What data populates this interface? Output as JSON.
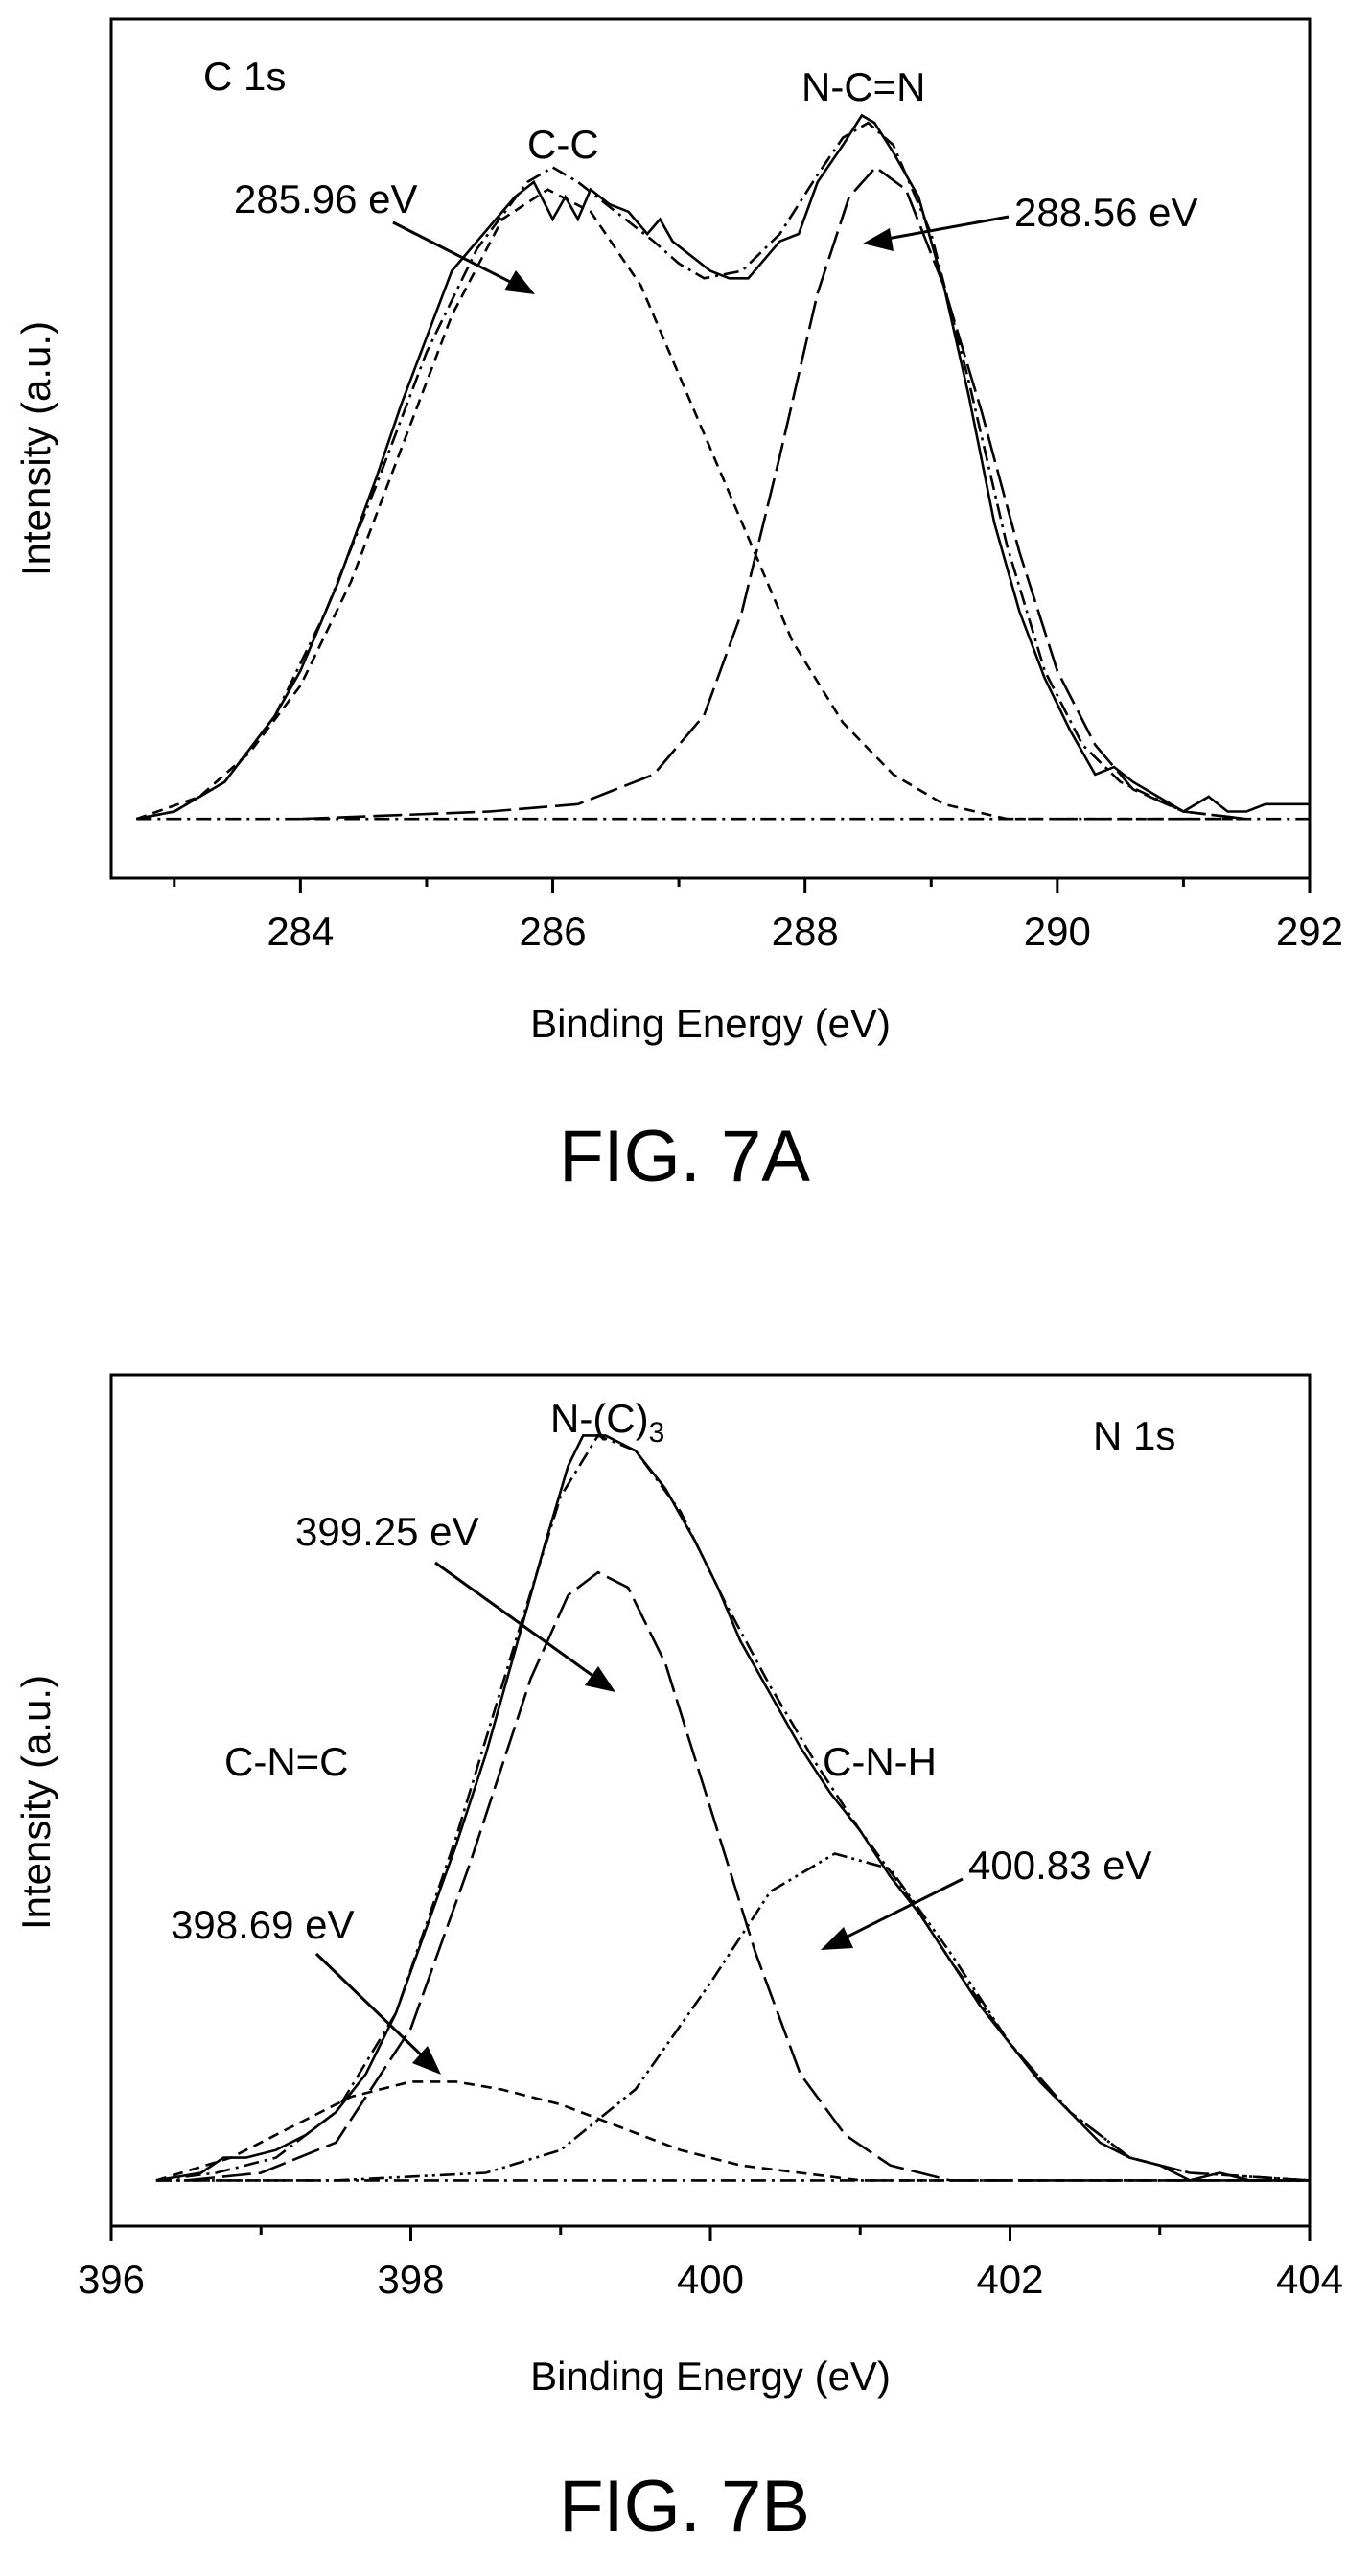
{
  "chart_data": [
    {
      "type": "line",
      "title": "C 1s",
      "xlabel": "Binding Energy (eV)",
      "ylabel": "Intensity (a.u.)",
      "figure_label": "FIG. 7A",
      "xlim": [
        282.5,
        292
      ],
      "ylim": [
        -0.08,
        1.08
      ],
      "xticks": [
        "284",
        "286",
        "288",
        "290",
        "292"
      ],
      "grid": false,
      "series": [
        {
          "style": "solid",
          "points": [
            [
              282.7,
              0.0
            ],
            [
              283.0,
              0.01
            ],
            [
              283.4,
              0.05
            ],
            [
              283.8,
              0.14
            ],
            [
              284.0,
              0.2
            ],
            [
              284.3,
              0.32
            ],
            [
              284.6,
              0.46
            ],
            [
              284.8,
              0.56
            ],
            [
              285.0,
              0.65
            ],
            [
              285.2,
              0.74
            ],
            [
              285.4,
              0.78
            ],
            [
              285.55,
              0.81
            ],
            [
              285.7,
              0.84
            ],
            [
              285.85,
              0.86
            ],
            [
              286.0,
              0.81
            ],
            [
              286.1,
              0.84
            ],
            [
              286.2,
              0.81
            ],
            [
              286.3,
              0.85
            ],
            [
              286.45,
              0.83
            ],
            [
              286.6,
              0.82
            ],
            [
              286.75,
              0.79
            ],
            [
              286.85,
              0.81
            ],
            [
              286.95,
              0.78
            ],
            [
              287.1,
              0.76
            ],
            [
              287.25,
              0.74
            ],
            [
              287.4,
              0.73
            ],
            [
              287.55,
              0.73
            ],
            [
              287.7,
              0.76
            ],
            [
              287.8,
              0.78
            ],
            [
              287.95,
              0.79
            ],
            [
              288.1,
              0.86
            ],
            [
              288.3,
              0.91
            ],
            [
              288.45,
              0.95
            ],
            [
              288.55,
              0.94
            ],
            [
              288.7,
              0.9
            ],
            [
              288.9,
              0.84
            ],
            [
              289.1,
              0.72
            ],
            [
              289.3,
              0.57
            ],
            [
              289.5,
              0.4
            ],
            [
              289.7,
              0.28
            ],
            [
              289.9,
              0.19
            ],
            [
              290.1,
              0.12
            ],
            [
              290.3,
              0.06
            ],
            [
              290.45,
              0.07
            ],
            [
              290.6,
              0.05
            ],
            [
              290.8,
              0.03
            ],
            [
              291.0,
              0.01
            ],
            [
              291.2,
              0.03
            ],
            [
              291.35,
              0.01
            ],
            [
              291.5,
              0.01
            ],
            [
              291.65,
              0.02
            ],
            [
              292.0,
              0.02
            ]
          ]
        },
        {
          "style": "dashdot",
          "name": "envelope",
          "points": [
            [
              282.7,
              0.0
            ],
            [
              283.0,
              0.01
            ],
            [
              283.4,
              0.05
            ],
            [
              283.8,
              0.14
            ],
            [
              284.2,
              0.28
            ],
            [
              284.6,
              0.45
            ],
            [
              285.0,
              0.63
            ],
            [
              285.4,
              0.77
            ],
            [
              285.8,
              0.86
            ],
            [
              286.0,
              0.88
            ],
            [
              286.2,
              0.86
            ],
            [
              286.5,
              0.82
            ],
            [
              286.8,
              0.78
            ],
            [
              287.0,
              0.75
            ],
            [
              287.2,
              0.73
            ],
            [
              287.5,
              0.74
            ],
            [
              287.8,
              0.79
            ],
            [
              288.1,
              0.87
            ],
            [
              288.3,
              0.92
            ],
            [
              288.5,
              0.94
            ],
            [
              288.7,
              0.91
            ],
            [
              289.0,
              0.79
            ],
            [
              289.3,
              0.59
            ],
            [
              289.6,
              0.37
            ],
            [
              289.9,
              0.2
            ],
            [
              290.2,
              0.1
            ],
            [
              290.5,
              0.05
            ],
            [
              291.0,
              0.01
            ],
            [
              291.5,
              0.0
            ]
          ]
        },
        {
          "style": "dashed",
          "name": "C-C",
          "center": 285.96,
          "points": [
            [
              282.7,
              0.0
            ],
            [
              283.2,
              0.03
            ],
            [
              283.6,
              0.09
            ],
            [
              284.0,
              0.18
            ],
            [
              284.4,
              0.32
            ],
            [
              284.8,
              0.5
            ],
            [
              285.2,
              0.68
            ],
            [
              285.6,
              0.81
            ],
            [
              285.96,
              0.85
            ],
            [
              286.3,
              0.82
            ],
            [
              286.7,
              0.72
            ],
            [
              287.1,
              0.56
            ],
            [
              287.5,
              0.4
            ],
            [
              287.9,
              0.24
            ],
            [
              288.3,
              0.13
            ],
            [
              288.7,
              0.06
            ],
            [
              289.1,
              0.02
            ],
            [
              289.6,
              0.0
            ],
            [
              291.5,
              0.0
            ]
          ]
        },
        {
          "style": "longdash",
          "name": "N-C=N",
          "center": 288.56,
          "points": [
            [
              284.0,
              0.0
            ],
            [
              285.5,
              0.01
            ],
            [
              286.2,
              0.02
            ],
            [
              286.8,
              0.06
            ],
            [
              287.2,
              0.14
            ],
            [
              287.5,
              0.28
            ],
            [
              287.8,
              0.49
            ],
            [
              288.1,
              0.71
            ],
            [
              288.35,
              0.84
            ],
            [
              288.56,
              0.88
            ],
            [
              288.8,
              0.85
            ],
            [
              289.1,
              0.72
            ],
            [
              289.4,
              0.55
            ],
            [
              289.7,
              0.36
            ],
            [
              290.0,
              0.2
            ],
            [
              290.3,
              0.1
            ],
            [
              290.6,
              0.04
            ],
            [
              291.0,
              0.01
            ],
            [
              291.5,
              0.0
            ]
          ]
        },
        {
          "style": "dashdot",
          "name": "baseline",
          "points": [
            [
              282.7,
              0.0
            ],
            [
              292.0,
              0.0
            ]
          ]
        }
      ],
      "annotations": [
        {
          "text": "C-C"
        },
        {
          "text": "N-C=N"
        },
        {
          "text": "285.96 eV"
        },
        {
          "text": "288.56 eV"
        }
      ]
    },
    {
      "type": "line",
      "title": "N 1s",
      "xlabel": "Binding Energy (eV)",
      "ylabel": "Intensity (a.u.)",
      "figure_label": "FIG. 7B",
      "xlim": [
        396,
        404
      ],
      "ylim": [
        -0.06,
        1.06
      ],
      "xticks": [
        "396",
        "398",
        "400",
        "402",
        "404"
      ],
      "grid": false,
      "series": [
        {
          "style": "solid",
          "points": [
            [
              396.3,
              0.0
            ],
            [
              396.6,
              0.01
            ],
            [
              396.75,
              0.03
            ],
            [
              396.9,
              0.03
            ],
            [
              397.1,
              0.04
            ],
            [
              397.3,
              0.06
            ],
            [
              397.5,
              0.09
            ],
            [
              397.7,
              0.14
            ],
            [
              397.9,
              0.22
            ],
            [
              398.1,
              0.33
            ],
            [
              398.3,
              0.44
            ],
            [
              398.5,
              0.56
            ],
            [
              398.7,
              0.7
            ],
            [
              398.9,
              0.84
            ],
            [
              399.05,
              0.94
            ],
            [
              399.15,
              0.98
            ],
            [
              399.3,
              0.98
            ],
            [
              399.5,
              0.96
            ],
            [
              399.7,
              0.91
            ],
            [
              399.9,
              0.84
            ],
            [
              400.05,
              0.78
            ],
            [
              400.2,
              0.71
            ],
            [
              400.4,
              0.64
            ],
            [
              400.6,
              0.57
            ],
            [
              400.8,
              0.51
            ],
            [
              401.0,
              0.46
            ],
            [
              401.2,
              0.4
            ],
            [
              401.4,
              0.35
            ],
            [
              401.6,
              0.29
            ],
            [
              401.8,
              0.23
            ],
            [
              402.0,
              0.18
            ],
            [
              402.2,
              0.13
            ],
            [
              402.4,
              0.09
            ],
            [
              402.6,
              0.05
            ],
            [
              402.8,
              0.03
            ],
            [
              403.0,
              0.02
            ],
            [
              403.2,
              0.0
            ],
            [
              403.4,
              0.01
            ],
            [
              403.6,
              0.0
            ],
            [
              404.0,
              0.0
            ]
          ]
        },
        {
          "style": "dashdot",
          "name": "envelope",
          "points": [
            [
              396.3,
              0.0
            ],
            [
              396.7,
              0.01
            ],
            [
              397.1,
              0.03
            ],
            [
              397.5,
              0.09
            ],
            [
              397.9,
              0.22
            ],
            [
              398.3,
              0.45
            ],
            [
              398.7,
              0.71
            ],
            [
              399.0,
              0.9
            ],
            [
              399.25,
              0.98
            ],
            [
              399.5,
              0.96
            ],
            [
              399.8,
              0.88
            ],
            [
              400.1,
              0.76
            ],
            [
              400.4,
              0.65
            ],
            [
              400.7,
              0.55
            ],
            [
              401.0,
              0.46
            ],
            [
              401.3,
              0.38
            ],
            [
              401.6,
              0.29
            ],
            [
              402.0,
              0.18
            ],
            [
              402.4,
              0.09
            ],
            [
              402.8,
              0.03
            ],
            [
              403.2,
              0.01
            ],
            [
              404.0,
              0.0
            ]
          ]
        },
        {
          "style": "dashed",
          "name": "C-N=C",
          "center": 398.69,
          "points": [
            [
              396.3,
              0.0
            ],
            [
              396.8,
              0.03
            ],
            [
              397.2,
              0.07
            ],
            [
              397.6,
              0.11
            ],
            [
              398.0,
              0.13
            ],
            [
              398.3,
              0.13
            ],
            [
              398.6,
              0.12
            ],
            [
              399.0,
              0.1
            ],
            [
              399.4,
              0.07
            ],
            [
              399.8,
              0.04
            ],
            [
              400.2,
              0.02
            ],
            [
              400.6,
              0.01
            ],
            [
              401.0,
              0.0
            ],
            [
              404.0,
              0.0
            ]
          ]
        },
        {
          "style": "longdash",
          "name": "N-(C)3",
          "center": 399.25,
          "points": [
            [
              396.5,
              0.0
            ],
            [
              397.0,
              0.01
            ],
            [
              397.5,
              0.05
            ],
            [
              398.0,
              0.2
            ],
            [
              398.4,
              0.42
            ],
            [
              398.8,
              0.66
            ],
            [
              399.05,
              0.77
            ],
            [
              399.25,
              0.8
            ],
            [
              399.45,
              0.78
            ],
            [
              399.7,
              0.68
            ],
            [
              400.0,
              0.49
            ],
            [
              400.3,
              0.3
            ],
            [
              400.6,
              0.14
            ],
            [
              400.9,
              0.06
            ],
            [
              401.2,
              0.02
            ],
            [
              401.6,
              0.0
            ],
            [
              404.0,
              0.0
            ]
          ]
        },
        {
          "style": "dashdotdot",
          "name": "C-N-H",
          "center": 400.83,
          "points": [
            [
              396.3,
              0.0
            ],
            [
              397.5,
              0.0
            ],
            [
              398.5,
              0.01
            ],
            [
              399.0,
              0.04
            ],
            [
              399.5,
              0.12
            ],
            [
              400.0,
              0.26
            ],
            [
              400.4,
              0.38
            ],
            [
              400.83,
              0.43
            ],
            [
              401.2,
              0.41
            ],
            [
              401.6,
              0.3
            ],
            [
              402.0,
              0.18
            ],
            [
              402.4,
              0.09
            ],
            [
              402.8,
              0.03
            ],
            [
              403.2,
              0.01
            ],
            [
              404.0,
              0.0
            ]
          ]
        },
        {
          "style": "dashdot",
          "name": "baseline",
          "points": [
            [
              396.3,
              0.0
            ],
            [
              404.0,
              0.0
            ]
          ]
        }
      ],
      "annotations": [
        {
          "text_main": "N-(C)",
          "text_sub": "3"
        },
        {
          "text": "399.25 eV"
        },
        {
          "text": "C-N=C"
        },
        {
          "text": "C-N-H"
        },
        {
          "text": "398.69 eV"
        },
        {
          "text": "400.83 eV"
        }
      ]
    }
  ]
}
